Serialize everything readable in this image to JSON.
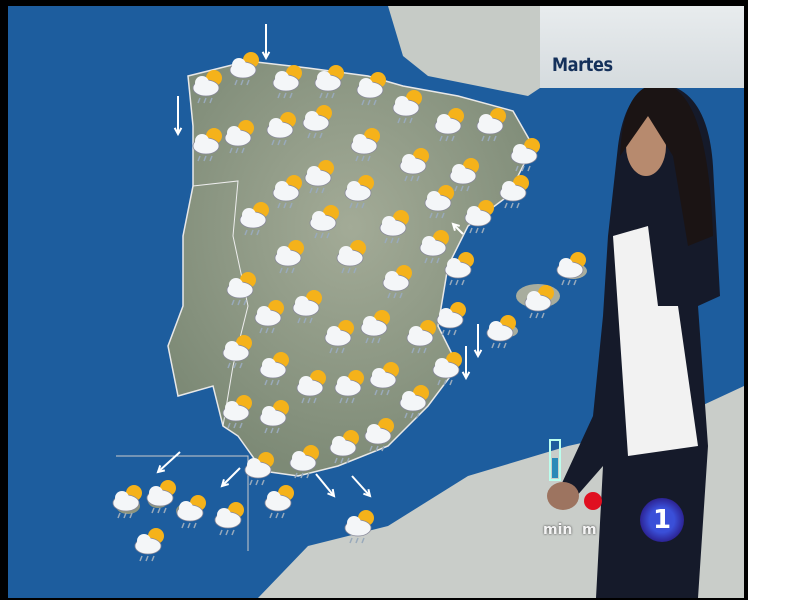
{
  "overlay": {
    "day_label": "Martes"
  },
  "legend": {
    "min_label": "min",
    "max_label_partial": "m"
  },
  "logo": {
    "text": "1",
    "color": "#3a4fd8"
  },
  "colors": {
    "sea": "#1d5d9e",
    "land": "#8f9a86",
    "label": "#14305a",
    "arrow": "#ffffff"
  },
  "map": {
    "forecast_icon": "sun-cloud-rain-icon",
    "wind_icon": "wind-arrow-icon"
  }
}
